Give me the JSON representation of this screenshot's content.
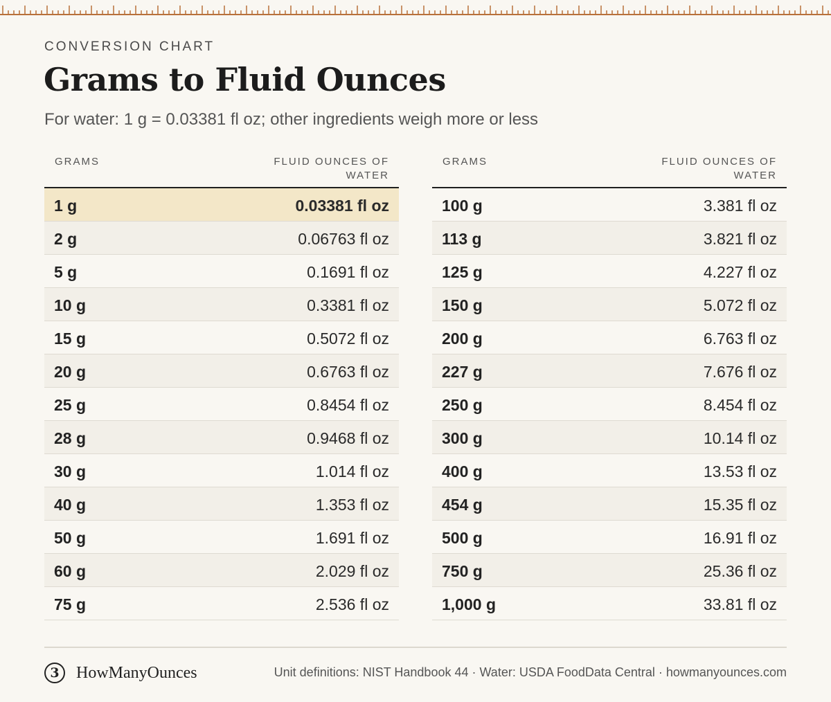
{
  "header": {
    "eyebrow": "CONVERSION CHART",
    "title": "Grams to Fluid Ounces",
    "subtitle": "For water: 1 g = 0.03381 fl oz; other ingredients weigh more or less"
  },
  "colors": {
    "accent": "#b8703a",
    "highlight": "#f3e7c8",
    "background": "#f9f7f2"
  },
  "table": {
    "col_grams": "GRAMS",
    "col_floz": "FLUID OUNCES OF WATER",
    "left_rows": [
      {
        "grams": "1 g",
        "floz": "0.03381 fl oz"
      },
      {
        "grams": "2 g",
        "floz": "0.06763 fl oz"
      },
      {
        "grams": "5 g",
        "floz": "0.1691 fl oz"
      },
      {
        "grams": "10 g",
        "floz": "0.3381 fl oz"
      },
      {
        "grams": "15 g",
        "floz": "0.5072 fl oz"
      },
      {
        "grams": "20 g",
        "floz": "0.6763 fl oz"
      },
      {
        "grams": "25 g",
        "floz": "0.8454 fl oz"
      },
      {
        "grams": "28 g",
        "floz": "0.9468 fl oz"
      },
      {
        "grams": "30 g",
        "floz": "1.014 fl oz"
      },
      {
        "grams": "40 g",
        "floz": "1.353 fl oz"
      },
      {
        "grams": "50 g",
        "floz": "1.691 fl oz"
      },
      {
        "grams": "60 g",
        "floz": "2.029 fl oz"
      },
      {
        "grams": "75 g",
        "floz": "2.536 fl oz"
      }
    ],
    "right_rows": [
      {
        "grams": "100 g",
        "floz": "3.381 fl oz"
      },
      {
        "grams": "113 g",
        "floz": "3.821 fl oz"
      },
      {
        "grams": "125 g",
        "floz": "4.227 fl oz"
      },
      {
        "grams": "150 g",
        "floz": "5.072 fl oz"
      },
      {
        "grams": "200 g",
        "floz": "6.763 fl oz"
      },
      {
        "grams": "227 g",
        "floz": "7.676 fl oz"
      },
      {
        "grams": "250 g",
        "floz": "8.454 fl oz"
      },
      {
        "grams": "300 g",
        "floz": "10.14 fl oz"
      },
      {
        "grams": "400 g",
        "floz": "13.53 fl oz"
      },
      {
        "grams": "454 g",
        "floz": "15.35 fl oz"
      },
      {
        "grams": "500 g",
        "floz": "16.91 fl oz"
      },
      {
        "grams": "750 g",
        "floz": "25.36 fl oz"
      },
      {
        "grams": "1,000 g",
        "floz": "33.81 fl oz"
      }
    ]
  },
  "footer": {
    "logo_glyph": "3",
    "brand": "HowManyOunces",
    "source": "Unit definitions: NIST Handbook 44 · Water: USDA FoodData Central · howmanyounces.com"
  }
}
